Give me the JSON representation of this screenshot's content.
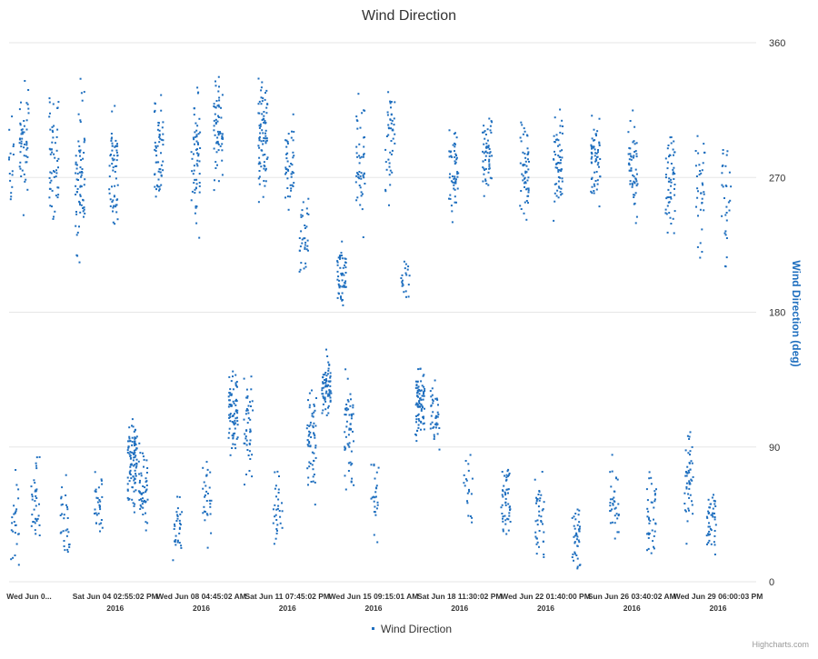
{
  "credits": "Highcharts.com",
  "colors": {
    "series": "#1f6fbf",
    "grid": "#e6e6e6",
    "axis_title": "#1f6fbf",
    "text": "#333333"
  },
  "chart_data": {
    "type": "scatter",
    "title": "Wind Direction",
    "ylabel": "Wind Direction (deg)",
    "xlabel": "",
    "ylim": [
      0,
      360
    ],
    "yticks": [
      0,
      90,
      180,
      270,
      360
    ],
    "y_axis_side": "right",
    "grid": true,
    "legend": {
      "placement": "bottom-center",
      "entries": [
        "Wind Direction"
      ]
    },
    "x_tick_labels": [
      {
        "line1": "Wed Jun 0...",
        "line2": ""
      },
      {
        "line1": "Sat Jun 04 02:55:02 PM",
        "line2": "2016"
      },
      {
        "line1": "Wed Jun 08 04:45:02 AM",
        "line2": "2016"
      },
      {
        "line1": "Sat Jun 11 07:45:02 PM",
        "line2": "2016"
      },
      {
        "line1": "Wed Jun 15 09:15:01 AM",
        "line2": "2016"
      },
      {
        "line1": "Sat Jun 18 11:30:02 PM",
        "line2": "2016"
      },
      {
        "line1": "Wed Jun 22 01:40:00 PM",
        "line2": "2016"
      },
      {
        "line1": "Sun Jun 26 03:40:02 AM",
        "line2": "2016"
      },
      {
        "line1": "Wed Jun 29 06:00:03 PM",
        "line2": "2016"
      }
    ],
    "series": [
      {
        "name": "Wind Direction",
        "marker": "small-square",
        "clusters": [
          {
            "x": 0.0,
            "center": 280,
            "spread": 70,
            "n": 40
          },
          {
            "x": 0.15,
            "center": 40,
            "spread": 45,
            "n": 25
          },
          {
            "x": 0.4,
            "center": 290,
            "spread": 60,
            "n": 50
          },
          {
            "x": 0.7,
            "center": 55,
            "spread": 45,
            "n": 35
          },
          {
            "x": 1.2,
            "center": 280,
            "spread": 60,
            "n": 55
          },
          {
            "x": 1.5,
            "center": 40,
            "spread": 40,
            "n": 30
          },
          {
            "x": 1.9,
            "center": 270,
            "spread": 70,
            "n": 70
          },
          {
            "x": 2.4,
            "center": 55,
            "spread": 45,
            "n": 30
          },
          {
            "x": 2.8,
            "center": 275,
            "spread": 60,
            "n": 60
          },
          {
            "x": 3.3,
            "center": 80,
            "spread": 45,
            "n": 95
          },
          {
            "x": 3.6,
            "center": 60,
            "spread": 40,
            "n": 50
          },
          {
            "x": 4.0,
            "center": 285,
            "spread": 60,
            "n": 55
          },
          {
            "x": 4.5,
            "center": 35,
            "spread": 30,
            "n": 30
          },
          {
            "x": 5.0,
            "center": 280,
            "spread": 60,
            "n": 60
          },
          {
            "x": 5.3,
            "center": 55,
            "spread": 40,
            "n": 30
          },
          {
            "x": 5.6,
            "center": 300,
            "spread": 55,
            "n": 60
          },
          {
            "x": 6.0,
            "center": 115,
            "spread": 40,
            "n": 75
          },
          {
            "x": 6.4,
            "center": 100,
            "spread": 50,
            "n": 45
          },
          {
            "x": 6.8,
            "center": 300,
            "spread": 60,
            "n": 80
          },
          {
            "x": 7.2,
            "center": 50,
            "spread": 40,
            "n": 30
          },
          {
            "x": 7.5,
            "center": 280,
            "spread": 50,
            "n": 45
          },
          {
            "x": 7.9,
            "center": 230,
            "spread": 40,
            "n": 35
          },
          {
            "x": 8.1,
            "center": 95,
            "spread": 50,
            "n": 60
          },
          {
            "x": 8.5,
            "center": 130,
            "spread": 30,
            "n": 70
          },
          {
            "x": 8.9,
            "center": 205,
            "spread": 30,
            "n": 55
          },
          {
            "x": 9.1,
            "center": 100,
            "spread": 50,
            "n": 55
          },
          {
            "x": 9.4,
            "center": 280,
            "spread": 60,
            "n": 50
          },
          {
            "x": 9.8,
            "center": 55,
            "spread": 35,
            "n": 25
          },
          {
            "x": 10.2,
            "center": 290,
            "spread": 55,
            "n": 45
          },
          {
            "x": 10.6,
            "center": 200,
            "spread": 25,
            "n": 20
          },
          {
            "x": 11.0,
            "center": 120,
            "spread": 30,
            "n": 80
          },
          {
            "x": 11.4,
            "center": 110,
            "spread": 40,
            "n": 40
          },
          {
            "x": 11.9,
            "center": 270,
            "spread": 50,
            "n": 55
          },
          {
            "x": 12.3,
            "center": 60,
            "spread": 30,
            "n": 20
          },
          {
            "x": 12.8,
            "center": 285,
            "spread": 40,
            "n": 55
          },
          {
            "x": 13.3,
            "center": 50,
            "spread": 35,
            "n": 50
          },
          {
            "x": 13.8,
            "center": 275,
            "spread": 45,
            "n": 55
          },
          {
            "x": 14.2,
            "center": 40,
            "spread": 40,
            "n": 40
          },
          {
            "x": 14.7,
            "center": 280,
            "spread": 45,
            "n": 60
          },
          {
            "x": 15.2,
            "center": 30,
            "spread": 35,
            "n": 40
          },
          {
            "x": 15.7,
            "center": 285,
            "spread": 40,
            "n": 60
          },
          {
            "x": 16.2,
            "center": 55,
            "spread": 40,
            "n": 35
          },
          {
            "x": 16.7,
            "center": 275,
            "spread": 45,
            "n": 55
          },
          {
            "x": 17.2,
            "center": 45,
            "spread": 40,
            "n": 40
          },
          {
            "x": 17.7,
            "center": 270,
            "spread": 50,
            "n": 55
          },
          {
            "x": 18.2,
            "center": 70,
            "spread": 50,
            "n": 50
          },
          {
            "x": 18.5,
            "center": 260,
            "spread": 60,
            "n": 35
          },
          {
            "x": 18.8,
            "center": 40,
            "spread": 40,
            "n": 45
          },
          {
            "x": 19.2,
            "center": 250,
            "spread": 60,
            "n": 30
          }
        ]
      }
    ]
  }
}
